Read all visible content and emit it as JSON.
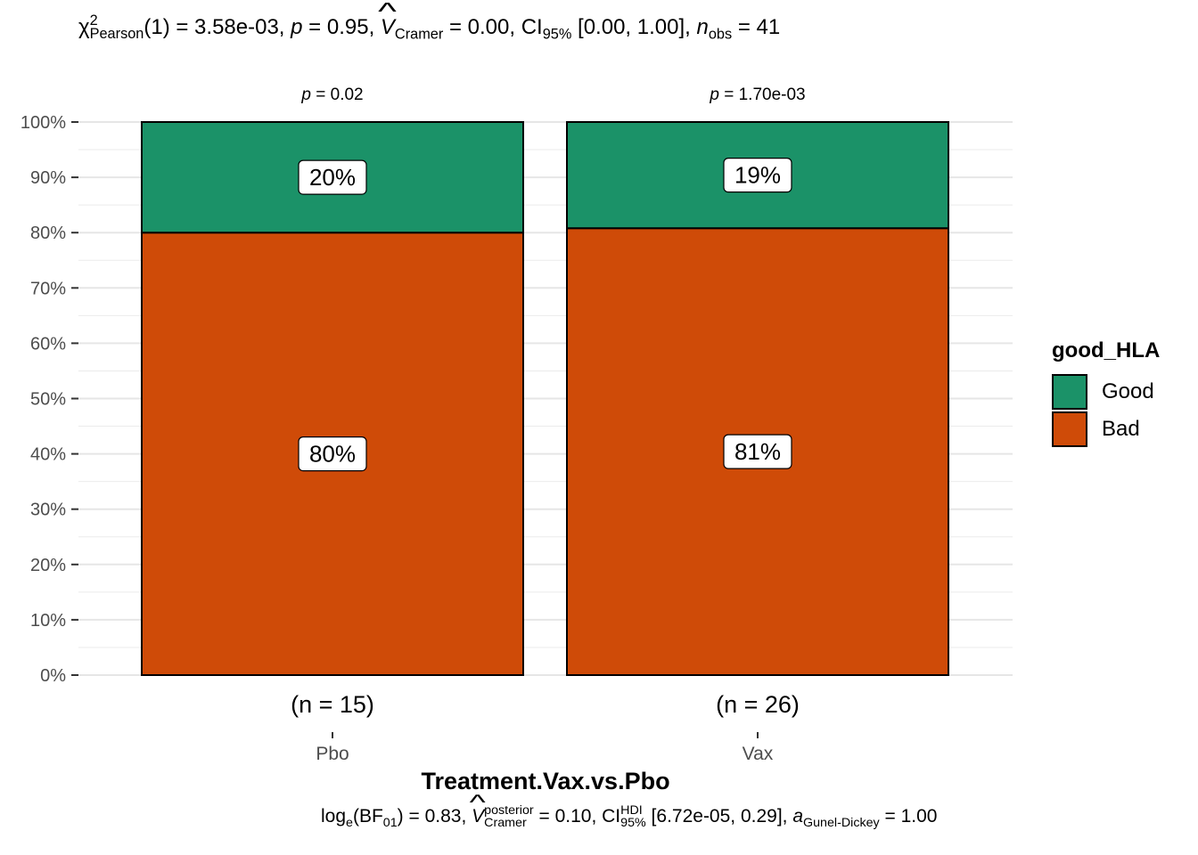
{
  "subtitle": {
    "chi": "χ",
    "chi_sup": "2",
    "chi_sub": "Pearson",
    "df": "(1) = 3.58e-03, ",
    "p_symbol": "p",
    "p_value": " = 0.95, ",
    "v_symbol": "V",
    "v_sub": "Cramer",
    "v_value": " = 0.00, CI",
    "ci_sub": "95%",
    "ci_value": " [0.00, 1.00], ",
    "n_symbol": "n",
    "n_sub": "obs",
    "n_value": " = 41"
  },
  "caption": {
    "log_text": "log",
    "log_sub": "e",
    "bf_text": "(BF",
    "bf_sub": "01",
    "bf_value": ") = 0.83, ",
    "v_symbol": "V",
    "v_sup": "posterior",
    "v_sub": "Cramer",
    "v_value": " = 0.10, CI",
    "ci_sup": "HDI",
    "ci_sub": "95%",
    "ci_value": " [6.72e-05, 0.29], ",
    "a_symbol": "a",
    "a_sub": "Gunel-Dickey",
    "a_value": " = 1.00"
  },
  "legend": {
    "title": "good_HLA",
    "items": [
      {
        "label": "Good",
        "color": "#1b9268"
      },
      {
        "label": "Bad",
        "color": "#cf4b08"
      }
    ]
  },
  "chart_data": {
    "type": "bar",
    "stacked": true,
    "percent": true,
    "categories": [
      "Pbo",
      "Vax"
    ],
    "category_counts": [
      "(n = 15)",
      "(n = 26)"
    ],
    "group_pvalues": [
      {
        "symbol": "p",
        "value": " = 0.02"
      },
      {
        "symbol": "p",
        "value": " = 1.70e-03"
      }
    ],
    "series": [
      {
        "name": "Bad",
        "color": "#cf4b08",
        "values": [
          80,
          80.8
        ],
        "labels": [
          "80%",
          "81%"
        ]
      },
      {
        "name": "Good",
        "color": "#1b9268",
        "values": [
          20,
          19.2
        ],
        "labels": [
          "20%",
          "19%"
        ]
      }
    ],
    "xlabel": "Treatment.Vax.vs.Pbo",
    "ylabel": "",
    "ylim": [
      0,
      100
    ],
    "yticks": [
      0,
      10,
      20,
      30,
      40,
      50,
      60,
      70,
      80,
      90,
      100
    ],
    "ytick_labels": [
      "0%",
      "10%",
      "20%",
      "30%",
      "40%",
      "50%",
      "60%",
      "70%",
      "80%",
      "90%",
      "100%"
    ],
    "grid": true,
    "legend_position": "right"
  }
}
